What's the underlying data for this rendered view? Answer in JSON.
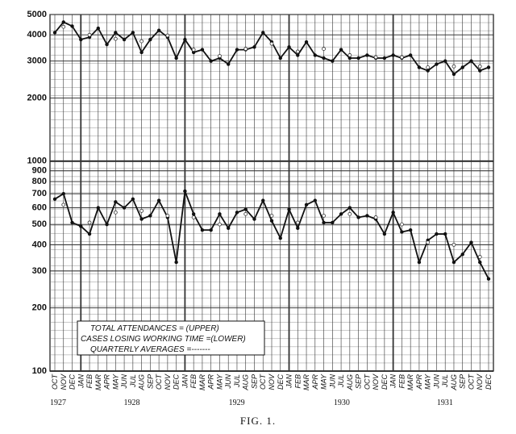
{
  "chart_data": {
    "type": "line",
    "log_scale": true,
    "grid": true,
    "categories": [
      "OCT",
      "NOV",
      "DEC",
      "JAN",
      "FEB",
      "MAR",
      "APR",
      "MAY",
      "JUN",
      "JUL",
      "AUG",
      "SEP",
      "OCT",
      "NOV",
      "DEC",
      "JAN",
      "FEB",
      "MAR",
      "APR",
      "MAY",
      "JUN",
      "JUL",
      "AUG",
      "SEP",
      "OCT",
      "NOV",
      "DEC",
      "JAN",
      "FEB",
      "MAR",
      "APR",
      "MAY",
      "JUN",
      "JUL",
      "AUG",
      "SEP",
      "OCT",
      "NOV",
      "DEC",
      "JAN",
      "FEB",
      "MAR",
      "APR",
      "MAY",
      "JUN",
      "JUL",
      "AUG",
      "SEP",
      "OCT",
      "NOV",
      "DEC"
    ],
    "years": [
      "1927",
      "1928",
      "1929",
      "1930",
      "1931"
    ],
    "ylim": [
      100,
      5000
    ],
    "yticks": [
      100,
      200,
      300,
      400,
      500,
      600,
      700,
      800,
      900,
      1000,
      2000,
      3000,
      4000,
      5000
    ],
    "series": [
      {
        "color": "#111111",
        "style": "solid",
        "values": [
          4100,
          4600,
          4400,
          3800,
          3900,
          4300,
          3600,
          4100,
          3800,
          4100,
          3300,
          3800,
          4200,
          3900,
          3100,
          3800,
          3300,
          3400,
          3000,
          3100,
          2900,
          3400,
          3400,
          3500,
          4100,
          3700,
          3100,
          3500,
          3200,
          3700,
          3200,
          3100,
          3000,
          3400,
          3100,
          3100,
          3200,
          3100,
          3100,
          3200,
          3100,
          3200,
          2800,
          2700,
          2900,
          3000,
          2600,
          2800,
          3000,
          2700,
          2800
        ]
      },
      {
        "color": "#111111",
        "style": "solid",
        "values": [
          660,
          700,
          510,
          490,
          450,
          600,
          500,
          640,
          600,
          660,
          530,
          550,
          650,
          540,
          330,
          720,
          560,
          470,
          470,
          560,
          480,
          570,
          590,
          530,
          650,
          520,
          430,
          590,
          480,
          620,
          650,
          510,
          510,
          560,
          600,
          540,
          550,
          530,
          450,
          570,
          460,
          470,
          330,
          420,
          450,
          450,
          330,
          360,
          410,
          330,
          275
        ]
      },
      {
        "color": "#333333",
        "style": "dashed",
        "values": [
          null,
          4370,
          null,
          null,
          4000,
          null,
          null,
          3830,
          null,
          null,
          3730,
          null,
          null,
          3970,
          null,
          null,
          3400,
          null,
          null,
          3170,
          null,
          null,
          3430,
          null,
          null,
          3630,
          null,
          null,
          3330,
          null,
          null,
          3430,
          null,
          null,
          3200,
          null,
          null,
          3130,
          null,
          null,
          3130,
          null,
          null,
          2800,
          null,
          null,
          2830,
          null,
          null,
          2830,
          null
        ]
      },
      {
        "color": "#333333",
        "style": "dashed",
        "values": [
          null,
          620,
          null,
          null,
          510,
          null,
          null,
          570,
          null,
          null,
          580,
          null,
          null,
          550,
          null,
          null,
          540,
          null,
          null,
          500,
          null,
          null,
          560,
          null,
          null,
          550,
          null,
          null,
          510,
          null,
          null,
          550,
          null,
          null,
          560,
          null,
          null,
          540,
          null,
          null,
          500,
          null,
          null,
          410,
          null,
          null,
          400,
          null,
          null,
          350,
          null
        ]
      }
    ],
    "annotations": [
      "TOTAL ATTENDANCES = (UPPER)",
      "CASES LOSING WORKING TIME =(LOWER)",
      "QUARTERLY AVERAGES =-------"
    ],
    "caption": "FIG. 1."
  }
}
